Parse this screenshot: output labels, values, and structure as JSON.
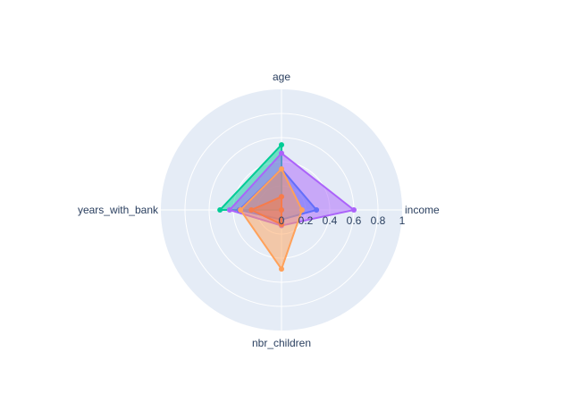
{
  "chart_data": {
    "type": "radar",
    "axes": [
      "age",
      "income",
      "nbr_children",
      "years_with_bank"
    ],
    "radial_range": [
      0,
      1
    ],
    "radial_ticks": [
      "0",
      "0.2",
      "0.4",
      "0.6",
      "0.8",
      "1"
    ],
    "radial_tick_values": [
      0,
      0.2,
      0.4,
      0.6,
      0.8,
      1
    ],
    "grid": true,
    "series": [
      {
        "values": [
          0.54,
          0.0,
          0.0,
          0.51
        ],
        "color": "#00cc96"
      },
      {
        "values": [
          0.47,
          0.6,
          0.13,
          0.43
        ],
        "color": "#ab63fa"
      },
      {
        "values": [
          0.34,
          0.29,
          0.08,
          0.35
        ],
        "color": "#636efa"
      },
      {
        "values": [
          0.11,
          0.0,
          0.12,
          0.25
        ],
        "color": "#ef553b"
      },
      {
        "values": [
          0.34,
          0.17,
          0.49,
          0.34
        ],
        "color": "#ffa15a"
      }
    ]
  },
  "colors": {
    "polar_background": "#e5ecf6",
    "grid_line": "#ffffff",
    "text": "#2a3f5f"
  }
}
